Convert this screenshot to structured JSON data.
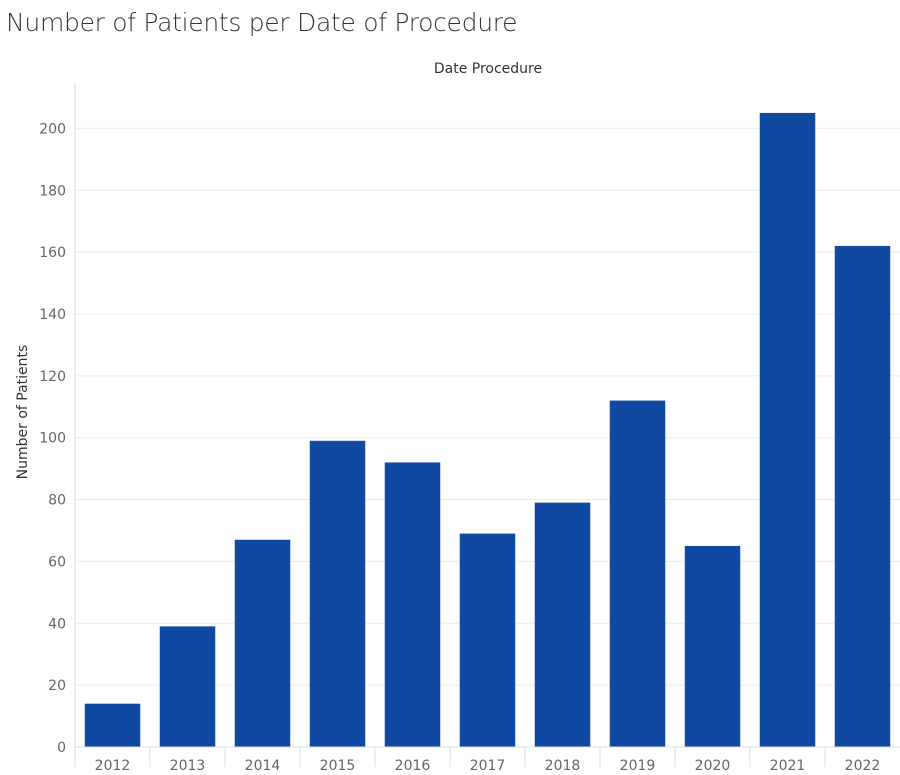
{
  "colors": {
    "bar": "#0f49a2",
    "grid": "#ececec",
    "axis": "#dddddd",
    "title": "#333333",
    "tick_text": "#666666"
  },
  "chart_data": {
    "type": "bar",
    "title": "Number of Patients per Date of Procedure",
    "xlabel": "Date Procedure",
    "ylabel": "Number of Patients",
    "categories": [
      "2012",
      "2013",
      "2014",
      "2015",
      "2016",
      "2017",
      "2018",
      "2019",
      "2020",
      "2021",
      "2022"
    ],
    "values": [
      14,
      39,
      67,
      99,
      92,
      69,
      79,
      112,
      65,
      205,
      162
    ],
    "ylim": [
      0,
      215
    ],
    "yticks": [
      0,
      20,
      40,
      60,
      80,
      100,
      120,
      140,
      160,
      180,
      200
    ],
    "grid": true,
    "xaxis_title_position": "top"
  }
}
